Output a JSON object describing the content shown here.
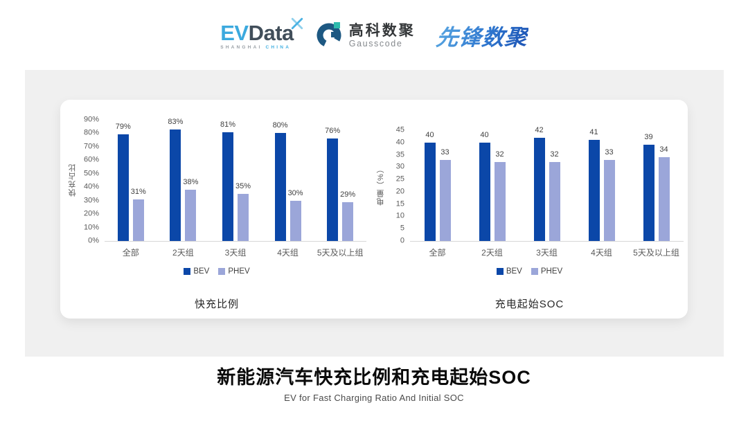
{
  "header": {
    "evdata": {
      "ev": "EV",
      "data": "Data",
      "sub_shanghai": "SHANGHAI",
      "sub_china": "CHINA"
    },
    "gausscode": {
      "cn": "高科数聚",
      "en": "Gausscode"
    },
    "xianfeng": {
      "text": "先锋数聚"
    }
  },
  "colors": {
    "bev": "#0b47a8",
    "phev": "#9ba6d9",
    "panel_bg": "#f0f0f0",
    "evdata_blue": "#3ca9de",
    "evdata_dark": "#414e5a",
    "gauss_blue": "#1d5882",
    "gauss_teal": "#2ebbad"
  },
  "chart_data": [
    {
      "type": "bar",
      "title": "快充比例",
      "ylabel": "快充占比",
      "xlabel": "",
      "ylim": [
        0,
        90
      ],
      "ytick_step": 10,
      "tick_suffix": "%",
      "label_suffix": "%",
      "grid": false,
      "legend_position": "bottom",
      "categories": [
        "全部",
        "2天组",
        "3天组",
        "4天组",
        "5天及以上组"
      ],
      "series": [
        {
          "name": "BEV",
          "color": "#0b47a8",
          "values": [
            79,
            83,
            81,
            80,
            76
          ]
        },
        {
          "name": "PHEV",
          "color": "#9ba6d9",
          "values": [
            31,
            38,
            35,
            30,
            29
          ]
        }
      ]
    },
    {
      "type": "bar",
      "title": "充电起始SOC",
      "ylabel": "电量（%）",
      "xlabel": "",
      "ylim": [
        0,
        45
      ],
      "ytick_step": 5,
      "tick_suffix": "",
      "label_suffix": "",
      "grid": false,
      "legend_position": "bottom",
      "categories": [
        "全部",
        "2天组",
        "3天组",
        "4天组",
        "5天及以上组"
      ],
      "series": [
        {
          "name": "BEV",
          "color": "#0b47a8",
          "values": [
            40,
            40,
            42,
            41,
            39
          ]
        },
        {
          "name": "PHEV",
          "color": "#9ba6d9",
          "values": [
            33,
            32,
            32,
            33,
            34
          ]
        }
      ]
    }
  ],
  "footer": {
    "title": "新能源汽车快充比例和充电起始SOC",
    "subtitle": "EV for Fast Charging Ratio And Initial SOC"
  }
}
